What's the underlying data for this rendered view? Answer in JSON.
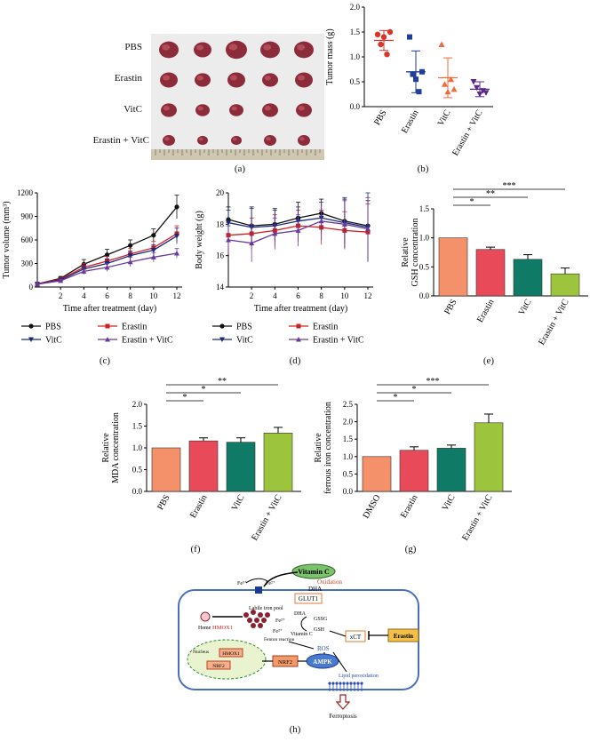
{
  "figure": {
    "captions": [
      "(a)",
      "(b)",
      "(c)",
      "(d)",
      "(e)",
      "(f)",
      "(g)",
      "(h)"
    ]
  },
  "photo": {
    "row_labels": [
      "PBS",
      "Erastin",
      "VitC",
      "Erastin + VitC"
    ],
    "colors": {
      "background": "#ececec",
      "tumor": "#8c2c3a",
      "tumor_light": "#c35a64"
    }
  },
  "colors": {
    "pbs": "#d9332b",
    "erastin": "#1e3f9a",
    "vitc": "#f06a3a",
    "combo": "#5a2a8a",
    "black": "#111111",
    "red": "#d02020",
    "navy": "#1a2a7a",
    "purple": "#6a3a9a",
    "bar_salmon": "#f4906a",
    "bar_red": "#e84a5a",
    "bar_teal": "#0f7a66",
    "bar_lime": "#9cc43c",
    "cell_border": "#4a6fc0"
  },
  "chart_data": [
    {
      "id": "b",
      "type": "scatter",
      "ylabel": "Tumor mass (g)",
      "ylim": [
        0,
        2.0
      ],
      "yticks": [
        "0.0",
        "0.5",
        "1.0",
        "1.5",
        "2.0"
      ],
      "categories": [
        "PBS",
        "Erastin",
        "VitC",
        "Erastin + VitC"
      ],
      "series": [
        {
          "points": [
            1.45,
            1.25,
            1.4,
            1.05,
            1.5
          ],
          "mean": 1.33,
          "sd": 0.2
        },
        {
          "points": [
            1.4,
            0.65,
            0.55,
            0.3,
            0.7
          ],
          "mean": 0.7,
          "sd": 0.42
        },
        {
          "points": [
            1.25,
            0.45,
            0.3,
            0.55,
            0.35
          ],
          "mean": 0.58,
          "sd": 0.4
        },
        {
          "points": [
            0.5,
            0.38,
            0.25,
            0.32,
            0.28
          ],
          "mean": 0.35,
          "sd": 0.15
        }
      ]
    },
    {
      "id": "c",
      "type": "line",
      "ylabel": "Tumor volume (mm³)",
      "xlabel": "Time after treatment (day)",
      "ylim": [
        0,
        1200
      ],
      "yticks": [
        "0",
        "300",
        "600",
        "900",
        "1200"
      ],
      "x": [
        0,
        2,
        4,
        6,
        8,
        10,
        12
      ],
      "xticks": [
        "2",
        "4",
        "6",
        "8",
        "10",
        "12"
      ],
      "series": [
        {
          "name": "PBS",
          "values": [
            40,
            110,
            290,
            410,
            530,
            660,
            1020
          ],
          "err": [
            10,
            25,
            60,
            70,
            70,
            80,
            150
          ]
        },
        {
          "name": "Erastin",
          "values": [
            40,
            100,
            250,
            330,
            420,
            500,
            680
          ],
          "err": [
            10,
            20,
            50,
            60,
            70,
            80,
            100
          ]
        },
        {
          "name": "VitC",
          "values": [
            35,
            90,
            230,
            300,
            400,
            470,
            650
          ],
          "err": [
            10,
            20,
            50,
            60,
            60,
            70,
            100
          ]
        },
        {
          "name": "Erastin + VitC",
          "values": [
            35,
            80,
            200,
            250,
            320,
            380,
            430
          ],
          "err": [
            10,
            20,
            40,
            50,
            60,
            60,
            60
          ]
        }
      ],
      "legend": [
        "PBS",
        "VitC",
        "Erastin",
        "Erastin + VitC"
      ]
    },
    {
      "id": "d",
      "type": "line",
      "ylabel": "Body weight (g)",
      "xlabel": "Time after treatment (day)",
      "ylim": [
        14,
        20
      ],
      "yticks": [
        "14",
        "16",
        "18",
        "20"
      ],
      "x": [
        0,
        2,
        4,
        6,
        8,
        10,
        12
      ],
      "xticks": [
        "2",
        "4",
        "6",
        "8",
        "10",
        "12"
      ],
      "series": [
        {
          "name": "PBS",
          "values": [
            18.3,
            17.9,
            18.0,
            18.4,
            18.7,
            18.2,
            17.9
          ],
          "err": [
            0.8,
            1.2,
            1.0,
            1.0,
            0.9,
            1.4,
            1.6
          ]
        },
        {
          "name": "Erastin",
          "values": [
            17.3,
            17.4,
            17.6,
            17.9,
            17.8,
            17.6,
            17.5
          ],
          "err": [
            0.8,
            1.0,
            1.0,
            1.0,
            1.1,
            1.2,
            1.8
          ]
        },
        {
          "name": "VitC",
          "values": [
            18.1,
            17.8,
            17.9,
            18.2,
            18.4,
            18.1,
            17.8
          ],
          "err": [
            0.8,
            1.2,
            1.0,
            0.9,
            1.0,
            1.6,
            2.2
          ]
        },
        {
          "name": "Erastin + VitC",
          "values": [
            17.0,
            16.8,
            17.4,
            17.6,
            18.2,
            18.0,
            17.7
          ],
          "err": [
            0.9,
            1.2,
            1.0,
            1.0,
            1.2,
            1.5,
            2.0
          ]
        }
      ],
      "legend": [
        "PBS",
        "VitC",
        "Erastin",
        "Erastin + VitC"
      ]
    },
    {
      "id": "e",
      "type": "bar",
      "ylabel": "Relative GSH concentration",
      "ylim": [
        0,
        1.5
      ],
      "yticks": [
        "0.0",
        "0.5",
        "1.0",
        "1.5"
      ],
      "categories": [
        "PBS",
        "Erastin",
        "VitC",
        "Erastin + VitC"
      ],
      "values": [
        1.0,
        0.8,
        0.63,
        0.38
      ],
      "err": [
        0,
        0.04,
        0.08,
        0.1
      ],
      "significance": [
        {
          "from": 0,
          "to": 1,
          "label": "*"
        },
        {
          "from": 0,
          "to": 2,
          "label": "**"
        },
        {
          "from": 0,
          "to": 3,
          "label": "***"
        }
      ]
    },
    {
      "id": "f",
      "type": "bar",
      "ylabel": "Relative MDA concentration",
      "ylim": [
        0,
        2.0
      ],
      "yticks": [
        "0.0",
        "0.5",
        "1.0",
        "1.5",
        "2.0"
      ],
      "categories": [
        "PBS",
        "Erastin",
        "VitC",
        "Erastin + VitC"
      ],
      "values": [
        1.0,
        1.16,
        1.13,
        1.34
      ],
      "err": [
        0,
        0.07,
        0.1,
        0.13
      ],
      "significance": [
        {
          "from": 0,
          "to": 1,
          "label": "*"
        },
        {
          "from": 0,
          "to": 2,
          "label": "*"
        },
        {
          "from": 0,
          "to": 3,
          "label": "**"
        }
      ]
    },
    {
      "id": "g",
      "type": "bar",
      "ylabel": "Relative ferrous iron concentration",
      "ylim": [
        0,
        2.5
      ],
      "yticks": [
        "0.0",
        "0.5",
        "1.0",
        "1.5",
        "2.0",
        "2.5"
      ],
      "categories": [
        "DMSO",
        "Erastin",
        "VitC",
        "Erastin + VitC"
      ],
      "values": [
        1.0,
        1.18,
        1.24,
        1.97
      ],
      "err": [
        0,
        0.1,
        0.09,
        0.25
      ],
      "significance": [
        {
          "from": 0,
          "to": 1,
          "label": "*"
        },
        {
          "from": 0,
          "to": 2,
          "label": "*"
        },
        {
          "from": 0,
          "to": 3,
          "label": "***"
        }
      ]
    }
  ],
  "diagram": {
    "vitamin_c": "Vitamin C",
    "oxidation": "Oxidation",
    "dha_top": "DHA",
    "glut1": "GLUT1",
    "fe3": "Fe³⁺",
    "fe2": "Fe²⁺",
    "labile_iron": "Labile iron pool",
    "dha_mid": "DHA",
    "gssg": "GSSG",
    "gsh": "GSH",
    "vitamin_c_mid": "Vitamin C",
    "xct": "xCT",
    "erastin": "Erastin",
    "heme": "Heme",
    "hmox1": "HMOX1",
    "fe2_mid": "Fe²⁺",
    "fe3_mid": "Fe³⁺",
    "fenton": "Fenton reaction",
    "ros": "ROS",
    "nucleus": "Nucleus",
    "hmox1_gene": "HMOX1",
    "nrf2_gene": "NRF2",
    "nrf2": "NRF2",
    "ampk": "AMPK",
    "lipid_perox": "Lipid peroxidation",
    "ferroptosis": "Ferroptosis"
  }
}
